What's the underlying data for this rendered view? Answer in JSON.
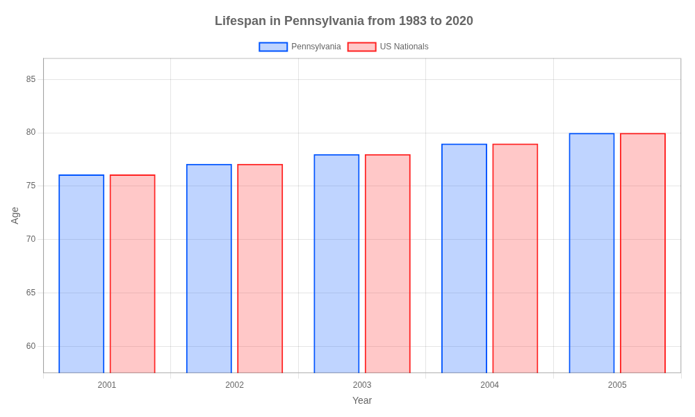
{
  "chart_data": {
    "type": "bar",
    "title": "Lifespan in Pennsylvania from 1983 to 2020",
    "xlabel": "Year",
    "ylabel": "Age",
    "categories": [
      2001,
      2002,
      2003,
      2004,
      2005
    ],
    "series": [
      {
        "name": "Pennsylvania",
        "color": "#0055ff",
        "values": [
          76.1,
          77.1,
          78.0,
          79.0,
          80.0
        ]
      },
      {
        "name": "US Nationals",
        "color": "#ff2222",
        "values": [
          76.1,
          77.1,
          78.0,
          79.0,
          80.0
        ]
      }
    ],
    "ylim": [
      57.5,
      87
    ],
    "yticks": [
      60,
      65,
      70,
      75,
      80,
      85
    ],
    "grid": true,
    "legend": "top"
  }
}
